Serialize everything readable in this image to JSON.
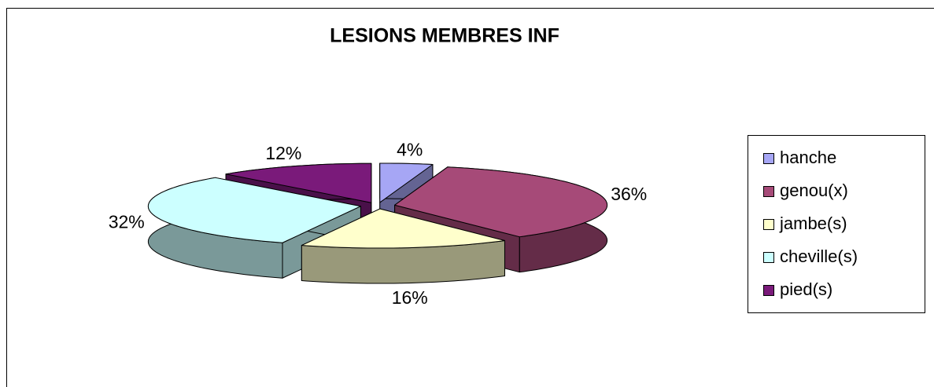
{
  "chart_data": {
    "type": "pie",
    "title": "LESIONS MEMBRES INF",
    "categories": [
      "hanche",
      "genou(x)",
      "jambe(s)",
      "cheville(s)",
      "pied(s)"
    ],
    "values": [
      4,
      36,
      16,
      32,
      12
    ],
    "value_labels": [
      "4%",
      "36%",
      "16%",
      "32%",
      "12%"
    ],
    "colors": [
      "#a6a6f5",
      "#a64a78",
      "#ffffcc",
      "#ccffff",
      "#7a1a7a"
    ],
    "legend": "right"
  }
}
